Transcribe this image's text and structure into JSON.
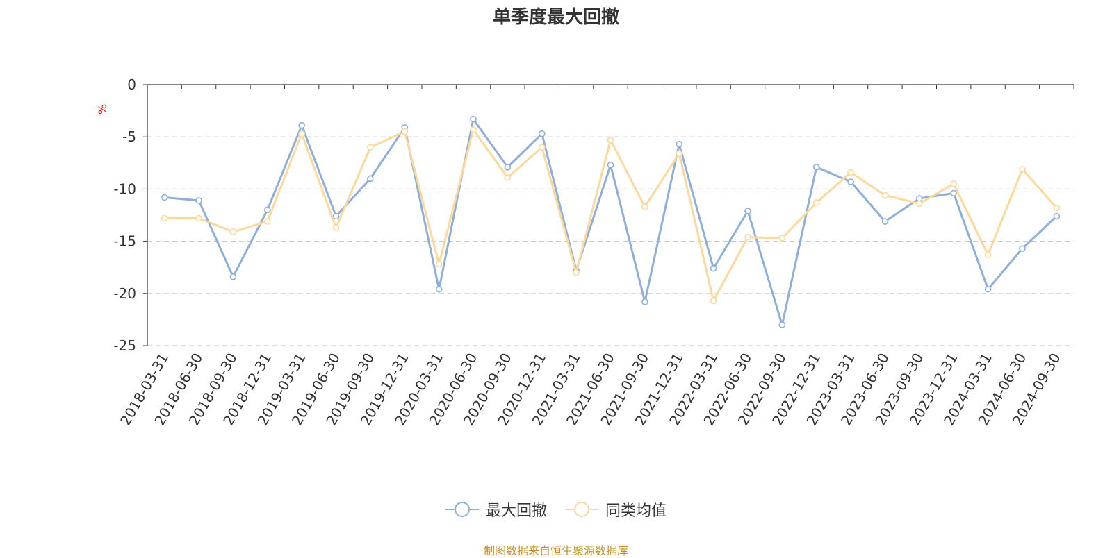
{
  "chart_data": {
    "type": "line",
    "title": "单季度最大回撤",
    "ylabel": "%",
    "xlabel": "",
    "ylim": [
      -25,
      0
    ],
    "yticks": [
      0,
      -5,
      -10,
      -15,
      -20,
      -25
    ],
    "categories": [
      "2018-03-31",
      "2018-06-30",
      "2018-09-30",
      "2018-12-31",
      "2019-03-31",
      "2019-06-30",
      "2019-09-30",
      "2019-12-31",
      "2020-03-31",
      "2020-06-30",
      "2020-09-30",
      "2020-12-31",
      "2021-03-31",
      "2021-06-30",
      "2021-09-30",
      "2021-12-31",
      "2022-03-31",
      "2022-06-30",
      "2022-09-30",
      "2022-12-31",
      "2023-03-31",
      "2023-06-30",
      "2023-09-30",
      "2023-12-31",
      "2024-03-31",
      "2024-06-30",
      "2024-09-30"
    ],
    "series": [
      {
        "name": "最大回撤",
        "color": "#8eaedb",
        "values": [
          -10.8,
          -11.1,
          -18.4,
          -12.0,
          -3.9,
          -12.6,
          -9.0,
          -4.1,
          -19.6,
          -3.3,
          -7.9,
          -4.7,
          -17.8,
          -7.7,
          -20.8,
          -5.7,
          -17.6,
          -12.1,
          -23.0,
          -7.9,
          -9.3,
          -13.1,
          -10.9,
          -10.4,
          -19.6,
          -15.7,
          -12.6
        ]
      },
      {
        "name": "同类均值",
        "color": "#fcd89a",
        "values": [
          -12.8,
          -12.8,
          -14.1,
          -13.1,
          -4.7,
          -13.7,
          -6.0,
          -4.5,
          -17.2,
          -4.3,
          -8.9,
          -6.0,
          -18.0,
          -5.3,
          -11.7,
          -6.6,
          -20.7,
          -14.6,
          -14.7,
          -11.3,
          -8.4,
          -10.6,
          -11.4,
          -9.5,
          -16.3,
          -8.1,
          -11.8
        ]
      }
    ]
  },
  "source": "制图数据来自恒生聚源数据库"
}
